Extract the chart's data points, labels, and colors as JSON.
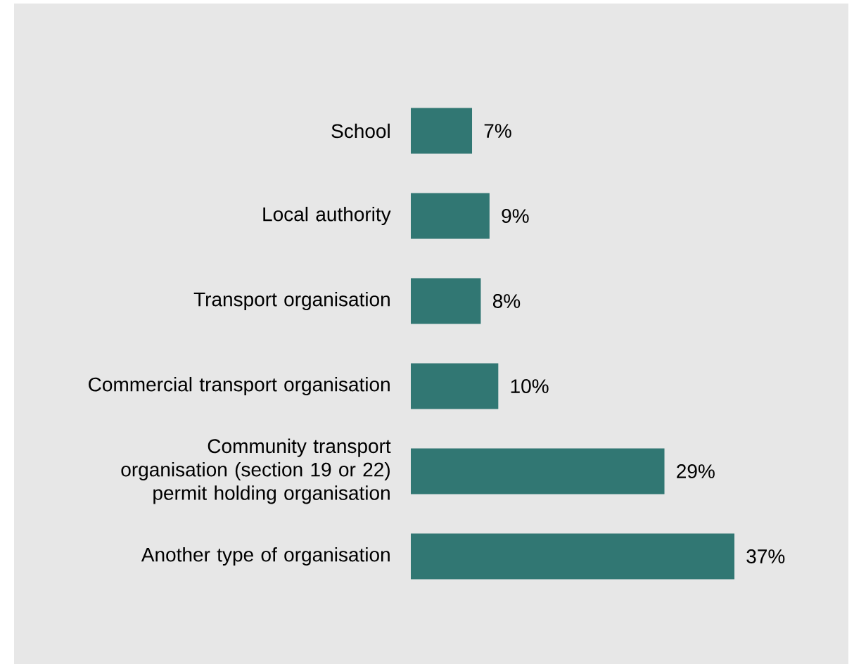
{
  "chart_data": {
    "type": "bar",
    "orientation": "horizontal",
    "categories": [
      "School",
      "Local authority",
      "Transport organisation",
      "Commercial transport organisation",
      "Community transport organisation (section 19 or 22) permit holding organisation",
      "Another type of organisation"
    ],
    "values": [
      7,
      9,
      8,
      10,
      29,
      37
    ],
    "value_labels": [
      "7%",
      "9%",
      "8%",
      "10%",
      "29%",
      "37%"
    ],
    "color": "#317773"
  }
}
